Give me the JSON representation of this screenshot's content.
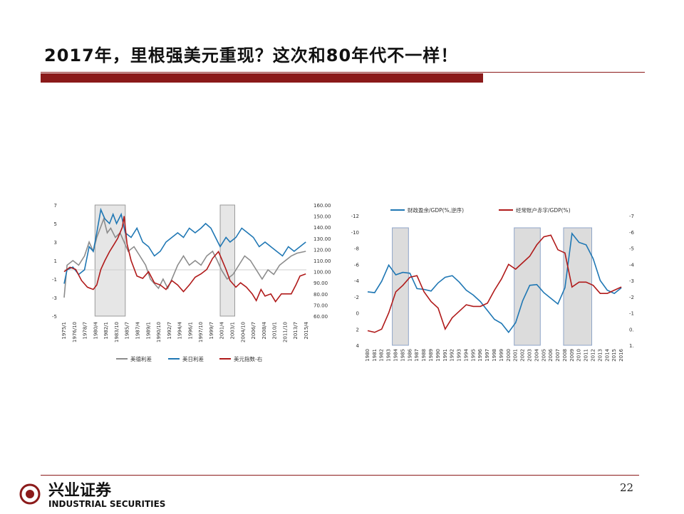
{
  "slide": {
    "title": "2017年，里根强美元重现？这次和80年代不一样！",
    "page_number": "22",
    "accent_color": "#8b1a1a"
  },
  "footer": {
    "logo_cn": "兴业证券",
    "logo_en": "INDUSTRIAL SECURITIES",
    "logo_icon": "company-seal-icon"
  },
  "chart_data": [
    {
      "type": "line",
      "x_ticks": [
        "1975/1",
        "1976/10",
        "1978/7",
        "1980/4",
        "1982/1",
        "1983/10",
        "1985/7",
        "1987/4",
        "1989/1",
        "1990/10",
        "1992/7",
        "1994/4",
        "1996/1",
        "1997/10",
        "1999/7",
        "2001/4",
        "2003/1",
        "2004/10",
        "2006/7",
        "2008/4",
        "2010/1",
        "2011/10",
        "2013/7",
        "2015/4"
      ],
      "x_range": [
        1975.0,
        2016.6
      ],
      "left_axis": {
        "ticks": [
          "7",
          "5",
          "3",
          "1",
          "-1",
          "-3",
          "-5"
        ],
        "range": [
          -5,
          7
        ]
      },
      "right_axis": {
        "ticks": [
          "160.00",
          "150.00",
          "140.00",
          "130.00",
          "120.00",
          "110.00",
          "100.00",
          "90.00",
          "80.00",
          "70.00",
          "60.00"
        ],
        "range": [
          60,
          160
        ]
      },
      "shaded_periods": [
        [
          1980.3,
          1985.5
        ],
        [
          2001.8,
          2004.3
        ]
      ],
      "series": [
        {
          "name": "美德利差",
          "color": "#8c8c8c",
          "axis": "left",
          "points": [
            [
              1975.0,
              -3.0
            ],
            [
              1975.5,
              0.5
            ],
            [
              1976.5,
              1.0
            ],
            [
              1977.5,
              0.5
            ],
            [
              1978.5,
              1.5
            ],
            [
              1979.3,
              3.0
            ],
            [
              1980.0,
              2.0
            ],
            [
              1980.6,
              3.5
            ],
            [
              1981.2,
              4.5
            ],
            [
              1981.8,
              5.5
            ],
            [
              1982.4,
              4.0
            ],
            [
              1983.0,
              4.5
            ],
            [
              1983.8,
              3.5
            ],
            [
              1984.6,
              4.0
            ],
            [
              1985.3,
              3.0
            ],
            [
              1986.0,
              2.0
            ],
            [
              1987.0,
              2.5
            ],
            [
              1988.0,
              1.5
            ],
            [
              1989.0,
              0.5
            ],
            [
              1989.8,
              -1.0
            ],
            [
              1990.5,
              -1.5
            ],
            [
              1991.2,
              -2.0
            ],
            [
              1992.0,
              -1.0
            ],
            [
              1992.8,
              -2.0
            ],
            [
              1993.5,
              -1.0
            ],
            [
              1994.5,
              0.5
            ],
            [
              1995.5,
              1.5
            ],
            [
              1996.5,
              0.5
            ],
            [
              1997.5,
              1.0
            ],
            [
              1998.5,
              0.5
            ],
            [
              1999.5,
              1.5
            ],
            [
              2000.5,
              2.0
            ],
            [
              2001.3,
              1.0
            ],
            [
              2002.0,
              0.0
            ],
            [
              2003.0,
              -1.0
            ],
            [
              2004.0,
              -0.5
            ],
            [
              2005.0,
              0.5
            ],
            [
              2006.0,
              1.5
            ],
            [
              2007.0,
              1.0
            ],
            [
              2008.0,
              0.0
            ],
            [
              2009.0,
              -1.0
            ],
            [
              2010.0,
              0.0
            ],
            [
              2011.0,
              -0.5
            ],
            [
              2012.0,
              0.5
            ],
            [
              2013.0,
              1.0
            ],
            [
              2014.0,
              1.5
            ],
            [
              2015.0,
              1.8
            ],
            [
              2016.5,
              2.0
            ]
          ]
        },
        {
          "name": "美日利差",
          "color": "#1f77b4",
          "axis": "left",
          "points": [
            [
              1975.0,
              -1.5
            ],
            [
              1975.5,
              0.0
            ],
            [
              1976.5,
              0.3
            ],
            [
              1977.5,
              -0.5
            ],
            [
              1978.5,
              0.0
            ],
            [
              1979.3,
              2.5
            ],
            [
              1980.0,
              2.0
            ],
            [
              1980.6,
              4.0
            ],
            [
              1981.3,
              6.5
            ],
            [
              1982.0,
              5.5
            ],
            [
              1982.8,
              5.0
            ],
            [
              1983.4,
              6.0
            ],
            [
              1984.0,
              5.0
            ],
            [
              1984.8,
              6.0
            ],
            [
              1985.5,
              4.0
            ],
            [
              1986.5,
              3.5
            ],
            [
              1987.5,
              4.5
            ],
            [
              1988.5,
              3.0
            ],
            [
              1989.5,
              2.5
            ],
            [
              1990.5,
              1.5
            ],
            [
              1991.5,
              2.0
            ],
            [
              1992.5,
              3.0
            ],
            [
              1993.5,
              3.5
            ],
            [
              1994.5,
              4.0
            ],
            [
              1995.5,
              3.5
            ],
            [
              1996.5,
              4.5
            ],
            [
              1997.5,
              4.0
            ],
            [
              1998.5,
              4.5
            ],
            [
              1999.3,
              5.0
            ],
            [
              2000.2,
              4.5
            ],
            [
              2001.0,
              3.5
            ],
            [
              2001.8,
              2.5
            ],
            [
              2002.8,
              3.5
            ],
            [
              2003.5,
              3.0
            ],
            [
              2004.5,
              3.5
            ],
            [
              2005.5,
              4.5
            ],
            [
              2006.5,
              4.0
            ],
            [
              2007.5,
              3.5
            ],
            [
              2008.5,
              2.5
            ],
            [
              2009.5,
              3.0
            ],
            [
              2010.5,
              2.5
            ],
            [
              2011.5,
              2.0
            ],
            [
              2012.5,
              1.5
            ],
            [
              2013.5,
              2.5
            ],
            [
              2014.5,
              2.0
            ],
            [
              2015.5,
              2.5
            ],
            [
              2016.5,
              3.0
            ]
          ]
        },
        {
          "name": "美元指数-右",
          "color": "#b01a1a",
          "axis": "right",
          "points": [
            [
              1975.0,
              100
            ],
            [
              1976.0,
              104
            ],
            [
              1977.0,
              102
            ],
            [
              1978.0,
              92
            ],
            [
              1979.0,
              86
            ],
            [
              1980.0,
              84
            ],
            [
              1980.6,
              88
            ],
            [
              1981.3,
              102
            ],
            [
              1982.0,
              110
            ],
            [
              1982.8,
              118
            ],
            [
              1983.5,
              124
            ],
            [
              1984.2,
              130
            ],
            [
              1985.0,
              140
            ],
            [
              1985.3,
              150
            ],
            [
              1985.8,
              125
            ],
            [
              1986.5,
              110
            ],
            [
              1987.5,
              96
            ],
            [
              1988.5,
              94
            ],
            [
              1989.5,
              100
            ],
            [
              1990.5,
              90
            ],
            [
              1991.5,
              88
            ],
            [
              1992.5,
              84
            ],
            [
              1993.5,
              92
            ],
            [
              1994.5,
              88
            ],
            [
              1995.5,
              82
            ],
            [
              1996.5,
              88
            ],
            [
              1997.5,
              95
            ],
            [
              1998.5,
              98
            ],
            [
              1999.5,
              102
            ],
            [
              2000.5,
              112
            ],
            [
              2001.5,
              118
            ],
            [
              2002.0,
              112
            ],
            [
              2002.8,
              102
            ],
            [
              2003.5,
              92
            ],
            [
              2004.5,
              86
            ],
            [
              2005.3,
              90
            ],
            [
              2006.3,
              86
            ],
            [
              2007.3,
              80
            ],
            [
              2008.0,
              74
            ],
            [
              2008.8,
              84
            ],
            [
              2009.5,
              78
            ],
            [
              2010.5,
              80
            ],
            [
              2011.3,
              73
            ],
            [
              2012.3,
              80
            ],
            [
              2013.3,
              80
            ],
            [
              2014.0,
              80
            ],
            [
              2014.8,
              88
            ],
            [
              2015.5,
              96
            ],
            [
              2016.5,
              98
            ]
          ]
        }
      ]
    },
    {
      "type": "line",
      "x_ticks": [
        "1980",
        "1981",
        "1982",
        "1983",
        "1984",
        "1985",
        "1986",
        "1987",
        "1988",
        "1989",
        "1990",
        "1991",
        "1992",
        "1993",
        "1994",
        "1995",
        "1996",
        "1997",
        "1998",
        "1999",
        "2000",
        "2001",
        "2002",
        "2003",
        "2004",
        "2005",
        "2006",
        "2007",
        "2008",
        "2009",
        "2010",
        "2011",
        "2012",
        "2013",
        "2014",
        "2015",
        "2016"
      ],
      "x_range": [
        1979.6,
        2016.6
      ],
      "left_axis": {
        "ticks": [
          "-12",
          "-10",
          "-8",
          "-6",
          "-4",
          "-2",
          "0",
          "2",
          "4"
        ],
        "range": [
          -12,
          4
        ],
        "inverted": true
      },
      "right_axis": {
        "ticks": [
          "-7.000",
          "-6.000",
          "-5.000",
          "-4.000",
          "-3.000",
          "-2.000",
          "-1.000",
          "0.000",
          "1.000"
        ],
        "range": [
          -7,
          1
        ],
        "inverted": true
      },
      "shaded_periods": [
        [
          1983.5,
          1985.8
        ],
        [
          2000.8,
          2004.5
        ],
        [
          2007.8,
          2011.8
        ]
      ],
      "series": [
        {
          "name": "财政盈余/GDP(%,逆序)",
          "color": "#1f77b4",
          "axis": "left",
          "x": [
            1980,
            1981,
            1982,
            1983,
            1984,
            1985,
            1986,
            1987,
            1988,
            1989,
            1990,
            1991,
            1992,
            1993,
            1994,
            1995,
            1996,
            1997,
            1998,
            1999,
            2000,
            2001,
            2002,
            2003,
            2004,
            2005,
            2006,
            2007,
            2008,
            2009,
            2010,
            2011,
            2012,
            2013,
            2014,
            2015,
            2016
          ],
          "values": [
            -2.6,
            -2.5,
            -3.9,
            -5.9,
            -4.7,
            -5.0,
            -4.9,
            -3.0,
            -2.9,
            -2.7,
            -3.7,
            -4.4,
            -4.6,
            -3.8,
            -2.8,
            -2.2,
            -1.4,
            -0.3,
            0.8,
            1.3,
            2.4,
            1.2,
            -1.5,
            -3.4,
            -3.5,
            -2.5,
            -1.8,
            -1.1,
            -3.1,
            -9.8,
            -8.7,
            -8.4,
            -6.7,
            -4.0,
            -2.8,
            -2.4,
            -3.1
          ]
        },
        {
          "name": "经常账户赤字/GDP(%)",
          "color": "#b01a1a",
          "axis": "right",
          "x": [
            1980,
            1981,
            1982,
            1983,
            1984,
            1985,
            1986,
            1987,
            1988,
            1989,
            1990,
            1991,
            1992,
            1993,
            1994,
            1995,
            1996,
            1997,
            1998,
            1999,
            2000,
            2001,
            2002,
            2003,
            2004,
            2005,
            2006,
            2007,
            2008,
            2009,
            2010,
            2011,
            2012,
            2013,
            2014,
            2015,
            2016
          ],
          "values": [
            0.1,
            0.2,
            0.0,
            -1.0,
            -2.3,
            -2.7,
            -3.2,
            -3.3,
            -2.3,
            -1.7,
            -1.3,
            0.0,
            -0.7,
            -1.1,
            -1.5,
            -1.4,
            -1.4,
            -1.6,
            -2.4,
            -3.1,
            -4.0,
            -3.7,
            -4.1,
            -4.5,
            -5.2,
            -5.7,
            -5.8,
            -4.9,
            -4.7,
            -2.6,
            -2.9,
            -2.9,
            -2.7,
            -2.2,
            -2.2,
            -2.4,
            -2.6
          ]
        }
      ]
    }
  ]
}
